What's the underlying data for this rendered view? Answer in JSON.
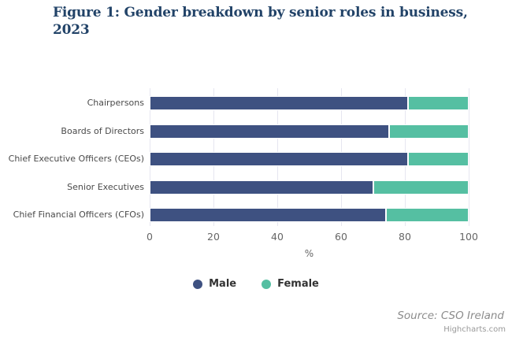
{
  "chart_data": {
    "type": "bar",
    "orientation": "horizontal",
    "stacking": "percent",
    "title": "Figure 1: Gender breakdown by senior roles in business, 2023",
    "categories": [
      "Chairpersons",
      "Boards of Directors",
      "Chief Executive Officers (CEOs)",
      "Senior Executives",
      "Chief Financial Officers (CFOs)"
    ],
    "series": [
      {
        "name": "Male",
        "color": "#3e5181",
        "values": [
          81,
          75,
          81,
          70,
          74
        ]
      },
      {
        "name": "Female",
        "color": "#55bfa2",
        "values": [
          19,
          25,
          19,
          30,
          26
        ]
      }
    ],
    "xlabel": "%",
    "xlim": [
      0,
      100
    ],
    "xticks": [
      0,
      20,
      40,
      60,
      80,
      100
    ],
    "grid": true,
    "legend_position": "bottom"
  },
  "source_note": "Source: CSO Ireland",
  "credits_label": "Highcharts.com",
  "colors": {
    "title": "#224368",
    "gridline": "#e6e6f0",
    "axis_label": "#666666",
    "category_label": "#4a4a4a",
    "legend_label": "#333333",
    "source": "#8c8c8c",
    "credits": "#999999"
  }
}
